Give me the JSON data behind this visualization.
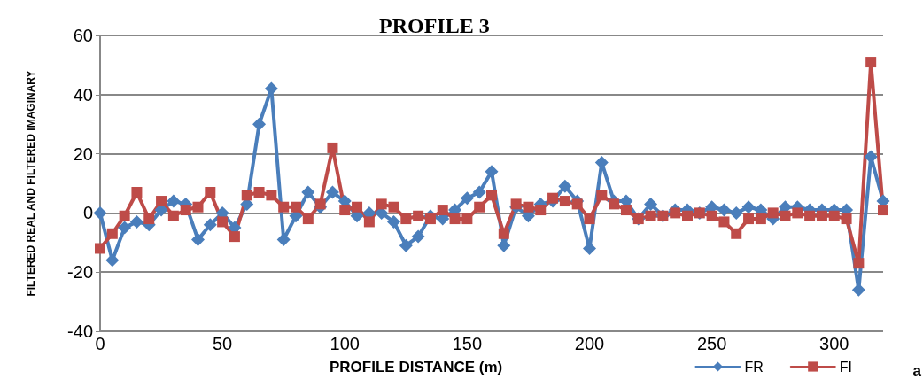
{
  "chart_data": {
    "type": "line",
    "title": "PROFILE 3",
    "xlabel": "PROFILE DISTANCE (m)",
    "ylabel": "FILTERED REAL AND FILTERED IMAGINARY",
    "x": [
      0,
      5,
      10,
      15,
      20,
      25,
      30,
      35,
      40,
      45,
      50,
      55,
      60,
      65,
      70,
      75,
      80,
      85,
      90,
      95,
      100,
      105,
      110,
      115,
      120,
      125,
      130,
      135,
      140,
      145,
      150,
      155,
      160,
      165,
      170,
      175,
      180,
      185,
      190,
      195,
      200,
      205,
      210,
      215,
      220,
      225,
      230,
      235,
      240,
      245,
      250,
      255,
      260,
      265,
      270,
      275,
      280,
      285,
      290,
      295,
      300,
      305,
      310,
      315,
      320
    ],
    "series": [
      {
        "name": "FR",
        "color": "#4a7ebb",
        "marker": "diamond",
        "values": [
          0,
          -16,
          -5,
          -3,
          -4,
          1,
          4,
          3,
          -9,
          -4,
          0,
          -5,
          3,
          30,
          42,
          -9,
          -1,
          7,
          2,
          7,
          4,
          -1,
          0,
          0,
          -3,
          -11,
          -8,
          -1,
          -2,
          1,
          5,
          7,
          14,
          -11,
          2,
          -1,
          3,
          4,
          9,
          4,
          -12,
          17,
          4,
          4,
          -2,
          3,
          -1,
          1,
          1,
          0,
          2,
          1,
          0,
          2,
          1,
          -2,
          2,
          2,
          1,
          1,
          1,
          1,
          -26,
          19,
          4
        ]
      },
      {
        "name": "FI",
        "color": "#be4b48",
        "marker": "square",
        "values": [
          -12,
          -7,
          -1,
          7,
          -2,
          4,
          -1,
          1,
          2,
          7,
          -3,
          -8,
          6,
          7,
          6,
          2,
          2,
          -2,
          3,
          22,
          1,
          2,
          -3,
          3,
          2,
          -2,
          -1,
          -2,
          1,
          -2,
          -2,
          2,
          6,
          -7,
          3,
          2,
          1,
          5,
          4,
          3,
          -2,
          6,
          3,
          1,
          -2,
          -1,
          -1,
          0,
          -1,
          0,
          -1,
          -3,
          -7,
          -2,
          -2,
          0,
          -1,
          0,
          -1,
          -1,
          -1,
          -2,
          -17,
          51,
          1
        ]
      }
    ],
    "xlim": [
      0,
      320
    ],
    "xticks": [
      0,
      50,
      100,
      150,
      200,
      250,
      300
    ],
    "ylim": [
      -40,
      60
    ],
    "yticks": [
      -40,
      -20,
      0,
      20,
      40,
      60
    ],
    "grid": "y",
    "legend": "bottom right",
    "line_style": "solid",
    "annotations": [
      "a"
    ]
  }
}
